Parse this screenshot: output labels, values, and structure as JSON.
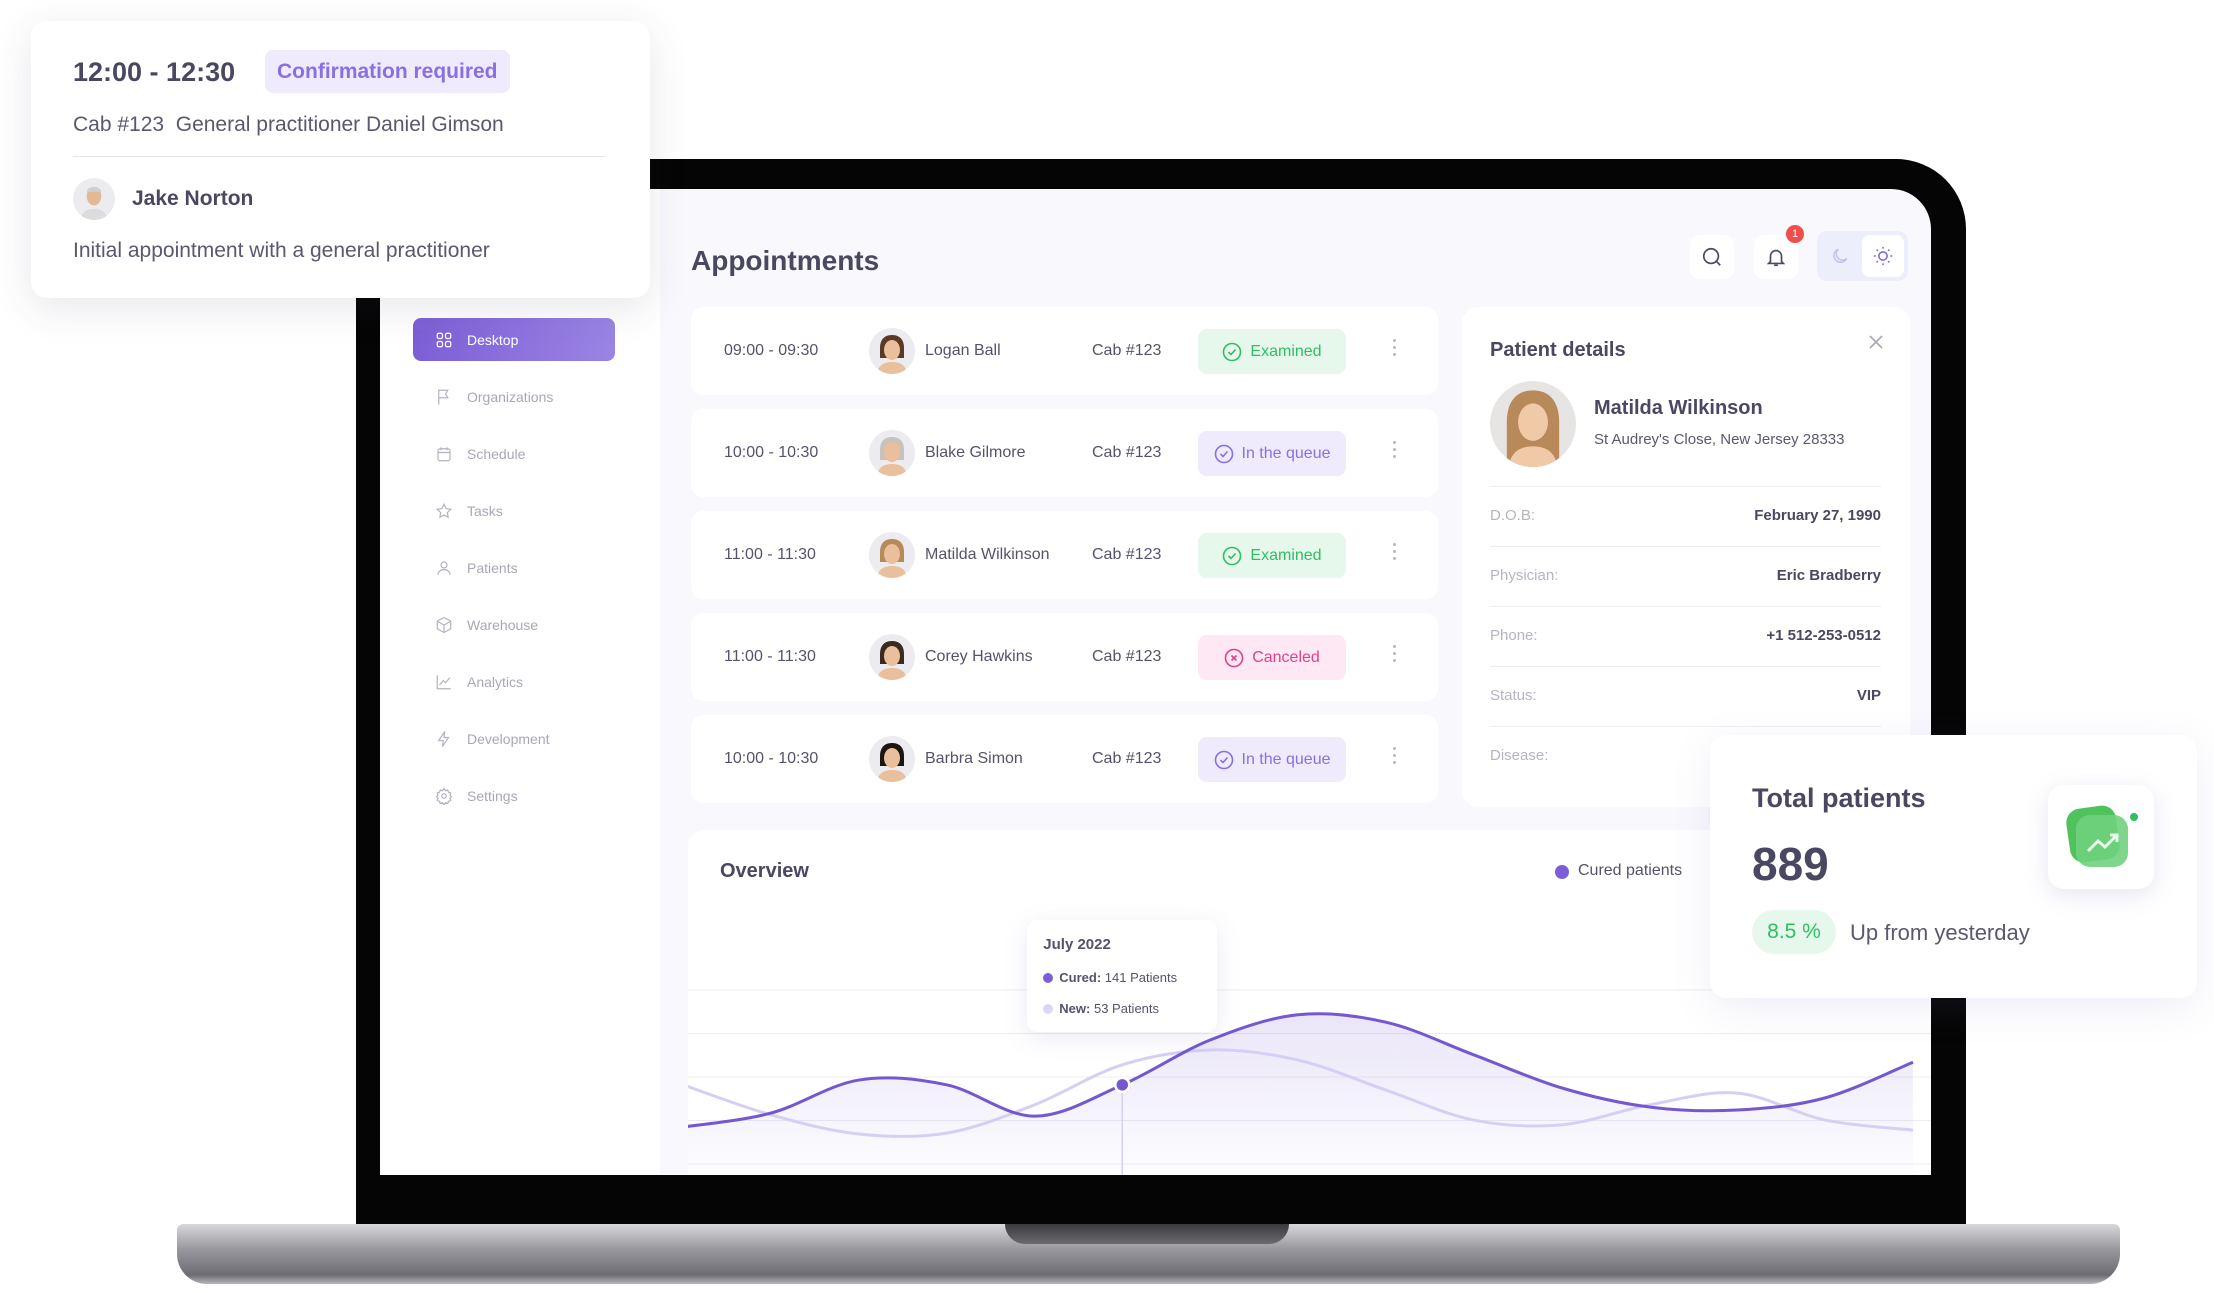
{
  "popup": {
    "time": "12:00 - 12:30",
    "badge": "Confirmation required",
    "details": "Cab #123  General practitioner Daniel Gimson",
    "patient": "Jake Norton",
    "description": "Initial appointment with a general practitioner"
  },
  "sidebar": {
    "items": [
      {
        "label": "Desktop",
        "icon": "grid-icon",
        "active": true
      },
      {
        "label": "Organizations",
        "icon": "flag-icon"
      },
      {
        "label": "Schedule",
        "icon": "calendar-icon"
      },
      {
        "label": "Tasks",
        "icon": "star-icon"
      },
      {
        "label": "Patients",
        "icon": "user-icon"
      },
      {
        "label": "Warehouse",
        "icon": "box-icon"
      },
      {
        "label": "Analytics",
        "icon": "chart-icon"
      },
      {
        "label": "Development",
        "icon": "lightning-icon"
      },
      {
        "label": "Settings",
        "icon": "gear-icon"
      }
    ]
  },
  "header": {
    "title": "Appointments",
    "notification_count": "1"
  },
  "appointments": [
    {
      "time": "09:00 - 09:30",
      "name": "Logan Ball",
      "cab": "Cab #123",
      "status": "Examined",
      "kind": "examined"
    },
    {
      "time": "10:00 - 10:30",
      "name": "Blake Gilmore",
      "cab": "Cab #123",
      "status": "In the queue",
      "kind": "queue"
    },
    {
      "time": "11:00 - 11:30",
      "name": "Matilda Wilkinson",
      "cab": "Cab #123",
      "status": "Examined",
      "kind": "examined"
    },
    {
      "time": "11:00 - 11:30",
      "name": "Corey Hawkins",
      "cab": "Cab #123",
      "status": "Canceled",
      "kind": "canceled"
    },
    {
      "time": "10:00 - 10:30",
      "name": "Barbra Simon",
      "cab": "Cab #123",
      "status": "In the queue",
      "kind": "queue"
    }
  ],
  "patient_details": {
    "title": "Patient details",
    "name": "Matilda Wilkinson",
    "address": "St Audrey's Close, New Jersey 28333",
    "fields": [
      {
        "label": "D.O.B:",
        "value": "February 27, 1990"
      },
      {
        "label": "Physician:",
        "value": "Eric Bradberry"
      },
      {
        "label": "Phone:",
        "value": "+1 512-253-0512"
      },
      {
        "label": "Status:",
        "value": "VIP"
      },
      {
        "label": "Disease:",
        "value": ""
      }
    ]
  },
  "overview": {
    "title": "Overview",
    "legend": "Cured patients",
    "tooltip": {
      "title": "July 2022",
      "cured_label": "Cured:",
      "cured_value": "141 Patients",
      "new_label": "New:",
      "new_value": "53 Patients"
    }
  },
  "chart_data": {
    "type": "area",
    "grid": true,
    "legend": "top-right",
    "highlight_index": 5,
    "series": [
      {
        "name": "Cured patients",
        "values": [
          0.85,
          1.17,
          1.93,
          1.82,
          1.1,
          1.82,
          2.85,
          3.43,
          3.26,
          2.51,
          1.75,
          1.31,
          1.24,
          1.52,
          2.34
        ]
      },
      {
        "values": [
          1.82,
          1.13,
          0.69,
          0.71,
          1.36,
          2.28,
          2.62,
          2.39,
          1.7,
          1.01,
          0.9,
          1.36,
          1.63,
          1.01,
          0.78
        ]
      }
    ]
  },
  "total_patients": {
    "title": "Total patients",
    "value": "889",
    "change": "8.5 %",
    "change_label": "Up from yesterday"
  },
  "colors": {
    "accent": "#7c5fd6",
    "examined": "#2fbf61",
    "queue": "#8b6fe0",
    "canceled": "#e0408f",
    "growth": "#2fbf61"
  }
}
